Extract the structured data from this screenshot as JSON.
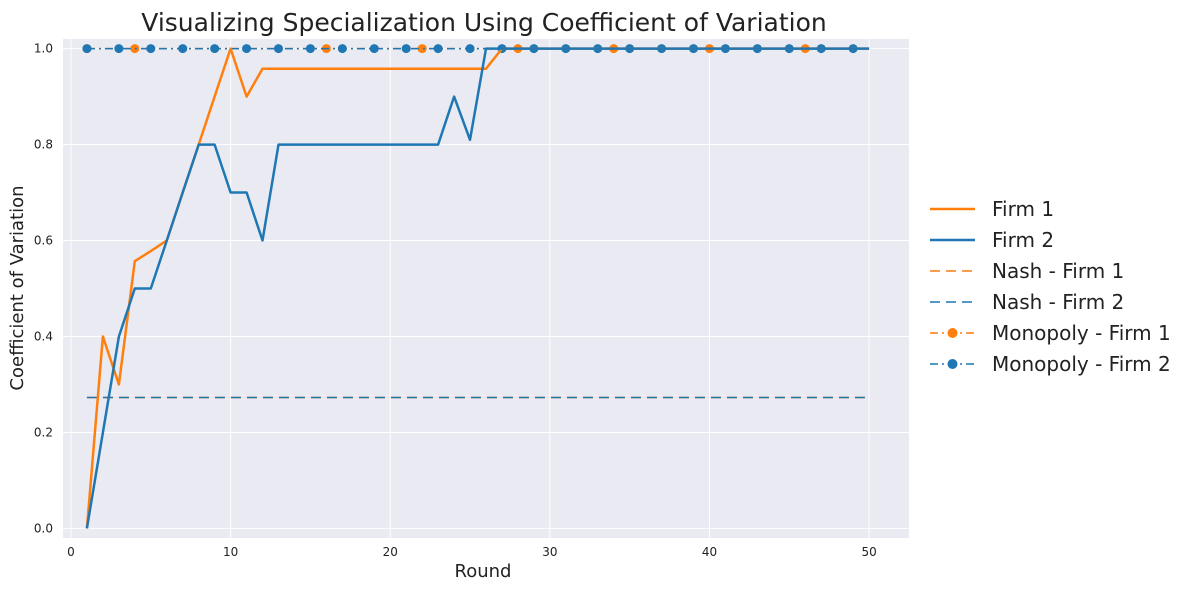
{
  "chart_data": {
    "type": "line",
    "title": "Visualizing Specialization Using Coefficient of Variation",
    "xlabel": "Round",
    "ylabel": "Coefficient of Variation",
    "xlim": [
      -0.5,
      52.5
    ],
    "ylim": [
      -0.02,
      1.02
    ],
    "xticks": [
      0,
      10,
      20,
      30,
      40,
      50
    ],
    "yticks": [
      0.0,
      0.2,
      0.4,
      0.6,
      0.8,
      1.0
    ],
    "grid": true,
    "legend_position": "right",
    "x": [
      1,
      2,
      3,
      4,
      5,
      6,
      7,
      8,
      9,
      10,
      11,
      12,
      13,
      14,
      15,
      16,
      17,
      18,
      19,
      20,
      21,
      22,
      23,
      24,
      25,
      26,
      27,
      28,
      29,
      30,
      31,
      32,
      33,
      34,
      35,
      36,
      37,
      38,
      39,
      40,
      41,
      42,
      43,
      44,
      45,
      46,
      47,
      48,
      49,
      50
    ],
    "series": [
      {
        "name": "Firm 1",
        "color": "#ff7f0e",
        "style": "solid",
        "values": [
          0.0,
          0.4,
          0.3,
          0.557,
          0.578,
          0.6,
          0.7,
          0.8,
          0.9,
          1.0,
          0.9,
          0.958,
          0.958,
          0.958,
          0.958,
          0.958,
          0.958,
          0.958,
          0.958,
          0.958,
          0.958,
          0.958,
          0.958,
          0.958,
          0.958,
          0.958,
          1.0,
          1.0,
          1.0,
          1.0,
          1.0,
          1.0,
          1.0,
          1.0,
          1.0,
          1.0,
          1.0,
          1.0,
          1.0,
          1.0,
          1.0,
          1.0,
          1.0,
          1.0,
          1.0,
          1.0,
          1.0,
          1.0,
          1.0,
          1.0
        ]
      },
      {
        "name": "Firm 2",
        "color": "#1f77b4",
        "style": "solid",
        "values": [
          0.0,
          0.2,
          0.4,
          0.5,
          0.5,
          0.6,
          0.7,
          0.8,
          0.8,
          0.7,
          0.7,
          0.6,
          0.8,
          0.8,
          0.8,
          0.8,
          0.8,
          0.8,
          0.8,
          0.8,
          0.8,
          0.8,
          0.8,
          0.9,
          0.81,
          1.0,
          1.0,
          1.0,
          1.0,
          1.0,
          1.0,
          1.0,
          1.0,
          1.0,
          1.0,
          1.0,
          1.0,
          1.0,
          1.0,
          1.0,
          1.0,
          1.0,
          1.0,
          1.0,
          1.0,
          1.0,
          1.0,
          1.0,
          1.0,
          1.0
        ]
      },
      {
        "name": "Nash - Firm 1",
        "color": "#ff7f0e",
        "style": "dashed",
        "constant": 0.2727
      },
      {
        "name": "Nash - Firm 2",
        "color": "#1f77b4",
        "style": "dashed",
        "constant": 0.2727
      },
      {
        "name": "Monopoly - Firm 1",
        "color": "#ff7f0e",
        "style": "dashdot-marker",
        "constant": 1.0,
        "markers_x": [
          1,
          4,
          16,
          22,
          28,
          34,
          40,
          46
        ]
      },
      {
        "name": "Monopoly - Firm 2",
        "color": "#1f77b4",
        "style": "dashdot-marker",
        "constant": 1.0,
        "markers_x": [
          1,
          3,
          5,
          7,
          9,
          11,
          13,
          15,
          17,
          19,
          21,
          23,
          25,
          27,
          29,
          31,
          33,
          35,
          37,
          39,
          41,
          43,
          45,
          47,
          49
        ]
      }
    ]
  }
}
